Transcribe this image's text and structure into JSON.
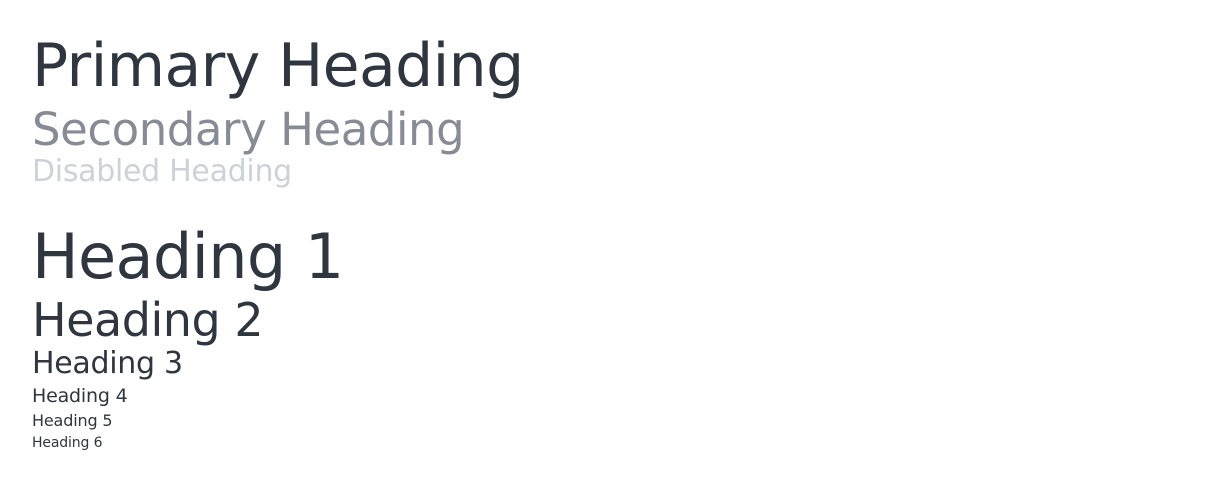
{
  "semantic_headings": {
    "primary": "Primary Heading",
    "secondary": "Secondary Heading",
    "disabled": "Disabled Heading"
  },
  "heading_levels": {
    "h1": "Heading 1",
    "h2": "Heading 2",
    "h3": "Heading 3",
    "h4": "Heading 4",
    "h5": "Heading 5",
    "h6": "Heading 6"
  },
  "colors": {
    "primary": "#2f3640",
    "secondary": "#868b95",
    "disabled": "#cdd2da",
    "background": "#ffffff"
  }
}
